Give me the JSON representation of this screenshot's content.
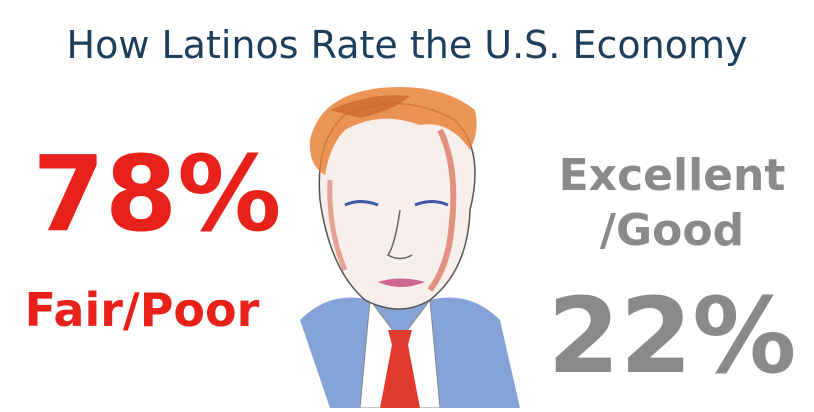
{
  "title": "How Latinos Rate the U.S. Economy",
  "left": {
    "percent": "78%",
    "label": "Fair/Poor"
  },
  "right": {
    "label": [
      "Excellent",
      "/Good"
    ],
    "percent": "22%"
  }
}
